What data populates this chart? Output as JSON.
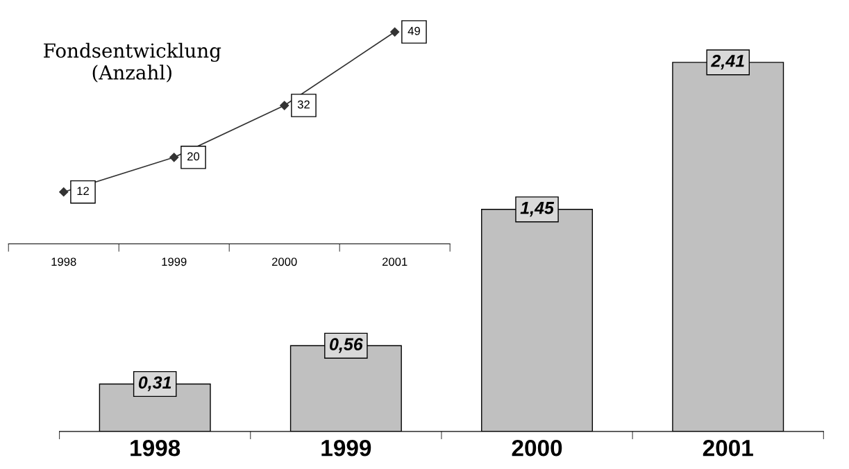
{
  "chart_data": [
    {
      "type": "bar",
      "categories": [
        "1998",
        "1999",
        "2000",
        "2001"
      ],
      "values": [
        0.31,
        0.56,
        1.45,
        2.41
      ],
      "value_labels": [
        "0,31",
        "0,56",
        "1,45",
        "2,41"
      ],
      "color": "#c0c0c0",
      "grid": false
    },
    {
      "type": "line",
      "title": "Fondsentwicklung\n(Anzahl)",
      "categories": [
        "1998",
        "1999",
        "2000",
        "2001"
      ],
      "values": [
        12,
        20,
        32,
        49
      ],
      "data_labels": true,
      "color": "#333333",
      "marker": "diamond",
      "grid": false
    }
  ]
}
